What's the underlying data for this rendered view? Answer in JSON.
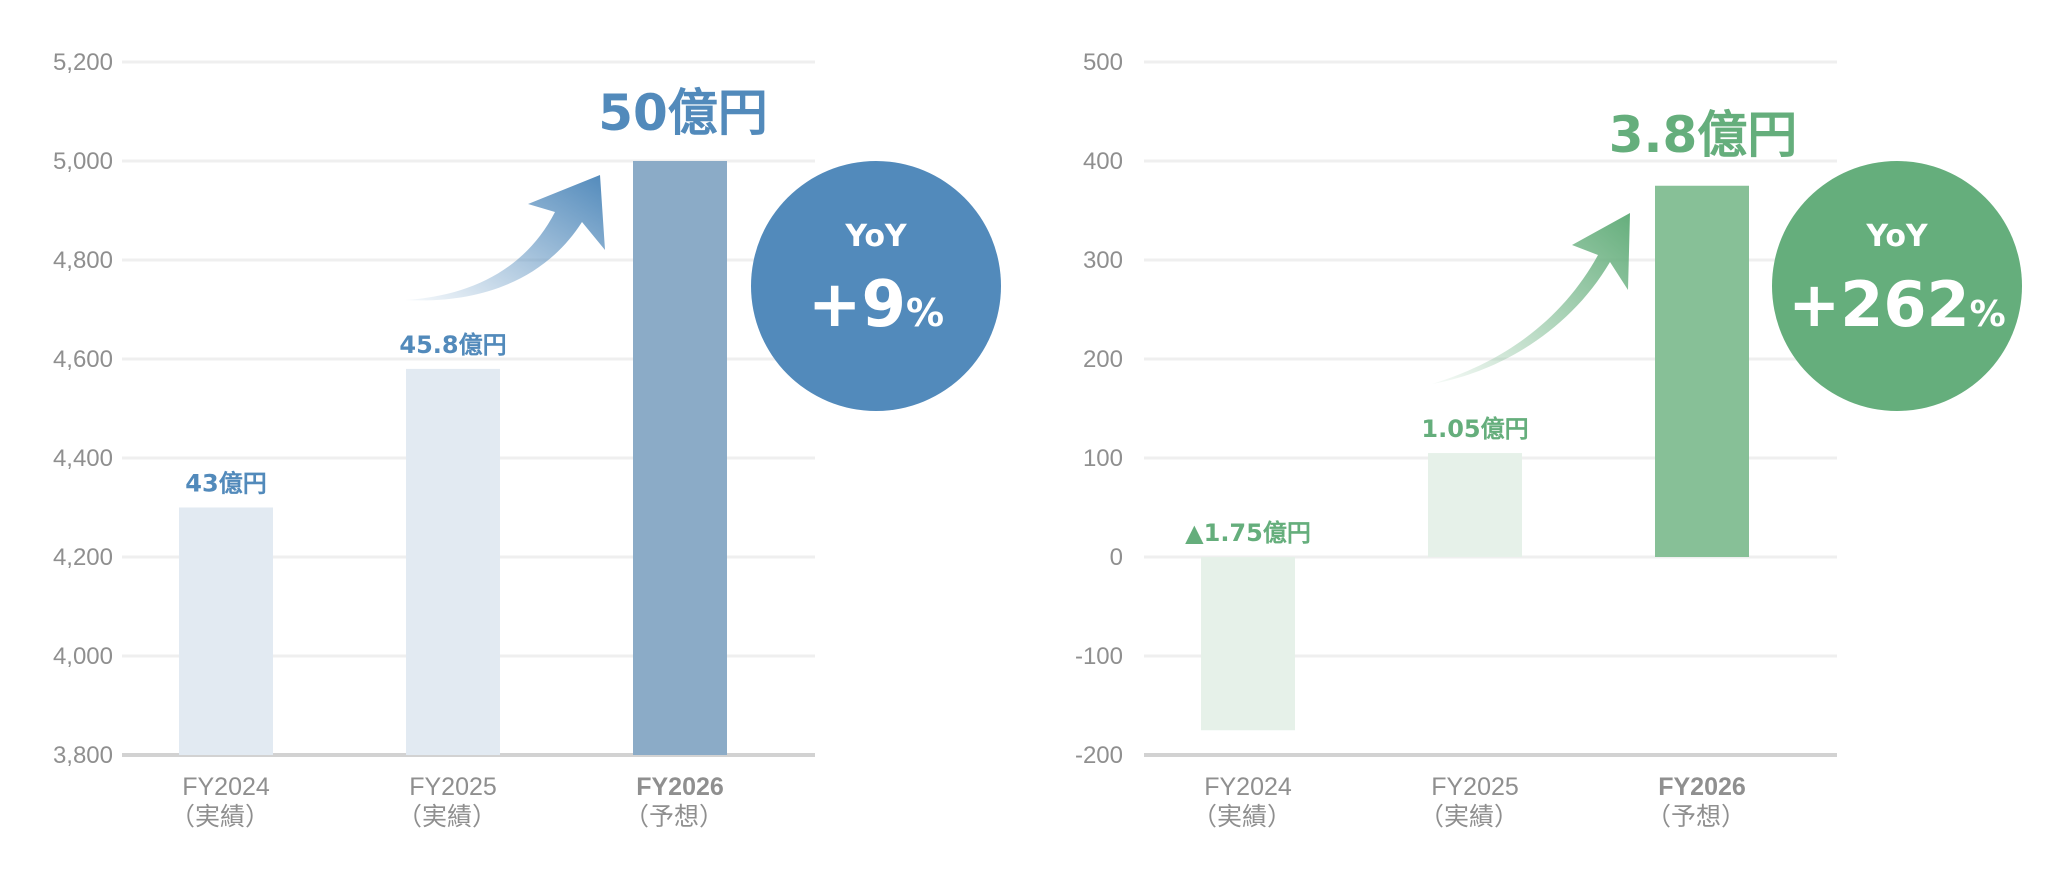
{
  "colors": {
    "grid": "#efefef",
    "axis": "#d2d2d2",
    "left_accent": "#528ABB",
    "left_bar_light": "#E2EAF2",
    "left_bar_highlight": "#8BABC7",
    "right_accent": "#65AE7C",
    "right_bar_light": "#E6F1E9",
    "right_bar_highlight": "#87C097"
  },
  "chart_data": [
    {
      "type": "bar",
      "categories": [
        "FY2024",
        "FY2025",
        "FY2026"
      ],
      "category_sublabels": [
        "（実績）",
        "（実績）",
        "（予想）"
      ],
      "values": [
        4300,
        4580,
        5000
      ],
      "data_labels": [
        "43億円",
        "45.8億円",
        ""
      ],
      "headline": "50億円",
      "ylim": [
        3800,
        5200
      ],
      "yticks": [
        3800,
        4000,
        4200,
        4400,
        4600,
        4800,
        5000,
        5200
      ],
      "ytick_labels": [
        "3,800",
        "4,000",
        "4,200",
        "4,400",
        "4,600",
        "4,800",
        "5,000",
        "5,200"
      ],
      "highlight_index": 2,
      "grid": true,
      "badge": {
        "label": "YoY",
        "value": "+9",
        "unit": "%"
      }
    },
    {
      "type": "bar",
      "categories": [
        "FY2024",
        "FY2025",
        "FY2026"
      ],
      "category_sublabels": [
        "（実績）",
        "（実績）",
        "（予想）"
      ],
      "values": [
        -175,
        105,
        375
      ],
      "data_labels": [
        "▲1.75億円",
        "1.05億円",
        ""
      ],
      "headline": "3.8億円",
      "ylim": [
        -200,
        500
      ],
      "yticks": [
        -200,
        -100,
        0,
        100,
        200,
        300,
        400,
        500
      ],
      "ytick_labels": [
        "-200",
        "-100",
        "0",
        "100",
        "200",
        "300",
        "400",
        "500"
      ],
      "highlight_index": 2,
      "grid": true,
      "badge": {
        "label": "YoY",
        "value": "+262",
        "unit": "%"
      }
    }
  ]
}
